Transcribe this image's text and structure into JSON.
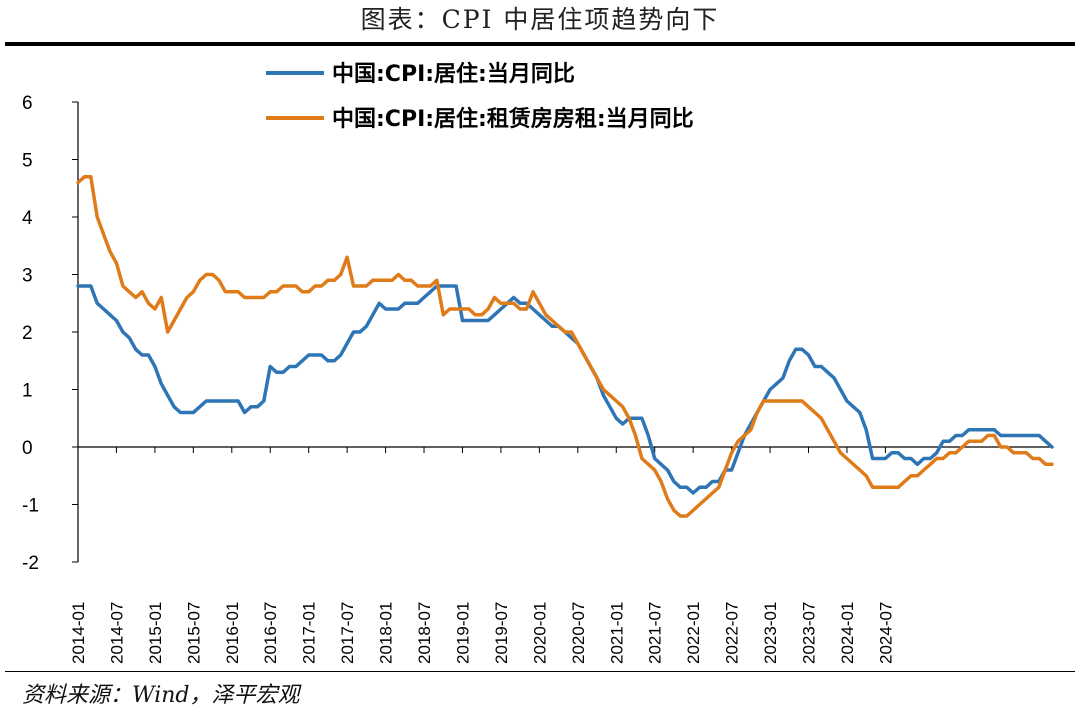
{
  "header": {
    "title": "图表：CPI 中居住项趋势向下"
  },
  "footer": {
    "source": "资料来源：Wind，泽平宏观"
  },
  "colors": {
    "series_1": "#2E75B6",
    "series_2": "#E07B1A",
    "axis": "#000000"
  },
  "chart_data": {
    "type": "line",
    "title": "",
    "xlabel": "",
    "ylabel": "",
    "ylim": [
      -2,
      6
    ],
    "yticks": [
      -2,
      -1,
      0,
      1,
      2,
      3,
      4,
      5,
      6
    ],
    "xticks": [
      "2014-01",
      "2014-07",
      "2015-01",
      "2015-07",
      "2016-01",
      "2016-07",
      "2017-01",
      "2017-07",
      "2018-01",
      "2018-07",
      "2019-01",
      "2019-07",
      "2020-01",
      "2020-07",
      "2021-01",
      "2021-07",
      "2022-01",
      "2022-07",
      "2023-01",
      "2023-07",
      "2024-01",
      "2024-07"
    ],
    "x_start": "2014-01",
    "grid": false,
    "legend_position": "top-left",
    "series": [
      {
        "name": "中国:CPI:居住:当月同比",
        "color": "#2E75B6",
        "values": [
          2.8,
          2.8,
          2.8,
          2.5,
          2.4,
          2.3,
          2.2,
          2.0,
          1.9,
          1.7,
          1.6,
          1.6,
          1.4,
          1.1,
          0.9,
          0.7,
          0.6,
          0.6,
          0.6,
          0.7,
          0.8,
          0.8,
          0.8,
          0.8,
          0.8,
          0.8,
          0.6,
          0.7,
          0.7,
          0.8,
          1.4,
          1.3,
          1.3,
          1.4,
          1.4,
          1.5,
          1.6,
          1.6,
          1.6,
          1.5,
          1.5,
          1.6,
          1.8,
          2.0,
          2.0,
          2.1,
          2.3,
          2.5,
          2.4,
          2.4,
          2.4,
          2.5,
          2.5,
          2.5,
          2.6,
          2.7,
          2.8,
          2.8,
          2.8,
          2.8,
          2.2,
          2.2,
          2.2,
          2.2,
          2.2,
          2.3,
          2.4,
          2.5,
          2.6,
          2.5,
          2.5,
          2.4,
          2.3,
          2.2,
          2.1,
          2.1,
          2.0,
          1.9,
          1.8,
          1.6,
          1.4,
          1.2,
          0.9,
          0.7,
          0.5,
          0.4,
          0.5,
          0.5,
          0.5,
          0.2,
          -0.2,
          -0.3,
          -0.4,
          -0.6,
          -0.7,
          -0.7,
          -0.8,
          -0.7,
          -0.7,
          -0.6,
          -0.6,
          -0.4,
          -0.4,
          -0.1,
          0.2,
          0.4,
          0.6,
          0.8,
          1.0,
          1.1,
          1.2,
          1.5,
          1.7,
          1.7,
          1.6,
          1.4,
          1.4,
          1.3,
          1.2,
          1.0,
          0.8,
          0.7,
          0.6,
          0.3,
          -0.2,
          -0.2,
          -0.2,
          -0.1,
          -0.1,
          -0.2,
          -0.2,
          -0.3,
          -0.2,
          -0.2,
          -0.1,
          0.1,
          0.1,
          0.2,
          0.2,
          0.3,
          0.3,
          0.3,
          0.3,
          0.3,
          0.2,
          0.2,
          0.2,
          0.2,
          0.2,
          0.2,
          0.2,
          0.1,
          0.0
        ]
      },
      {
        "name": "中国:CPI:居住:租赁房房租:当月同比",
        "color": "#E07B1A",
        "values": [
          4.6,
          4.7,
          4.7,
          4.0,
          3.7,
          3.4,
          3.2,
          2.8,
          2.7,
          2.6,
          2.7,
          2.5,
          2.4,
          2.6,
          2.0,
          2.2,
          2.4,
          2.6,
          2.7,
          2.9,
          3.0,
          3.0,
          2.9,
          2.7,
          2.7,
          2.7,
          2.6,
          2.6,
          2.6,
          2.6,
          2.7,
          2.7,
          2.8,
          2.8,
          2.8,
          2.7,
          2.7,
          2.8,
          2.8,
          2.9,
          2.9,
          3.0,
          3.3,
          2.8,
          2.8,
          2.8,
          2.9,
          2.9,
          2.9,
          2.9,
          3.0,
          2.9,
          2.9,
          2.8,
          2.8,
          2.8,
          2.9,
          2.3,
          2.4,
          2.4,
          2.4,
          2.4,
          2.3,
          2.3,
          2.4,
          2.6,
          2.5,
          2.5,
          2.5,
          2.4,
          2.4,
          2.7,
          2.5,
          2.3,
          2.2,
          2.1,
          2.0,
          2.0,
          1.8,
          1.6,
          1.4,
          1.2,
          1.0,
          0.9,
          0.8,
          0.7,
          0.5,
          0.2,
          -0.2,
          -0.3,
          -0.4,
          -0.6,
          -0.9,
          -1.1,
          -1.2,
          -1.2,
          -1.1,
          -1.0,
          -0.9,
          -0.8,
          -0.7,
          -0.4,
          -0.1,
          0.1,
          0.2,
          0.3,
          0.6,
          0.8,
          0.8,
          0.8,
          0.8,
          0.8,
          0.8,
          0.8,
          0.7,
          0.6,
          0.5,
          0.3,
          0.1,
          -0.1,
          -0.2,
          -0.3,
          -0.4,
          -0.5,
          -0.7,
          -0.7,
          -0.7,
          -0.7,
          -0.7,
          -0.6,
          -0.5,
          -0.5,
          -0.4,
          -0.3,
          -0.2,
          -0.2,
          -0.1,
          -0.1,
          0.0,
          0.1,
          0.1,
          0.1,
          0.2,
          0.2,
          0.0,
          0.0,
          -0.1,
          -0.1,
          -0.1,
          -0.2,
          -0.2,
          -0.3,
          -0.3
        ]
      }
    ]
  }
}
